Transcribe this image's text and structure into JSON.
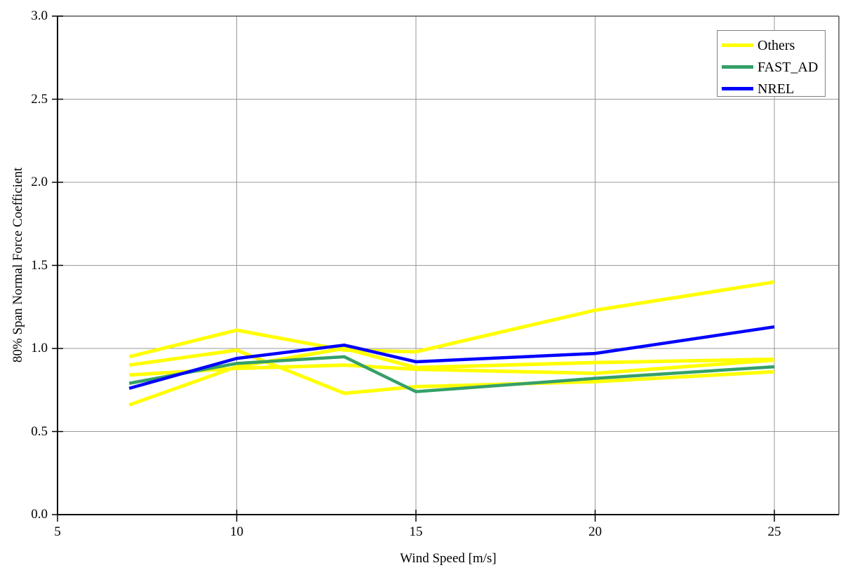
{
  "chart_data": {
    "type": "line",
    "x": [
      7,
      10,
      13,
      15,
      20,
      25
    ],
    "series": [
      {
        "name": "Others",
        "color": "#FFFF00",
        "values": [
          0.95,
          1.11,
          0.99,
          0.98,
          1.23,
          1.4
        ]
      },
      {
        "name": "Others",
        "color": "#FFFF00",
        "values": [
          0.9,
          0.99,
          0.73,
          0.77,
          0.8,
          0.86
        ]
      },
      {
        "name": "Others",
        "color": "#FFFF00",
        "values": [
          0.84,
          0.88,
          0.9,
          0.875,
          0.85,
          0.93
        ]
      },
      {
        "name": "Others",
        "color": "#FFFF00",
        "values": [
          0.66,
          0.89,
          1.0,
          0.885,
          0.915,
          0.935
        ]
      },
      {
        "name": "FAST_AD",
        "color": "#34A068",
        "values": [
          0.79,
          0.91,
          0.95,
          0.74,
          0.82,
          0.89
        ]
      },
      {
        "name": "NREL",
        "color": "#0000FF",
        "values": [
          0.76,
          0.94,
          1.02,
          0.92,
          0.97,
          1.13
        ]
      }
    ],
    "title": "",
    "xlabel": "Wind Speed [m/s]",
    "ylabel": "80% Span Normal Force Coefficient",
    "xlim": [
      5,
      26.8
    ],
    "ylim": [
      0,
      3
    ],
    "xticks": [
      5,
      10,
      15,
      20,
      25
    ],
    "yticks": [
      0,
      0.5,
      1,
      1.5,
      2,
      2.5,
      3
    ],
    "xtick_labels": [
      "5",
      "10",
      "15",
      "20",
      "25"
    ],
    "ytick_labels": [
      "0.0",
      "0.5",
      "1.0",
      "1.5",
      "2.0",
      "2.5",
      "3.0"
    ],
    "grid": true,
    "legend_position": "top-right",
    "legend_entries": [
      {
        "label": "Others",
        "color": "#FFFF00"
      },
      {
        "label": "FAST_AD",
        "color": "#34A068"
      },
      {
        "label": "NREL",
        "color": "#0000FF"
      }
    ],
    "colors": {
      "gridline": "#999999",
      "plot_border": "#595959",
      "axis": "#000000",
      "background": "#FFFFFF"
    }
  }
}
